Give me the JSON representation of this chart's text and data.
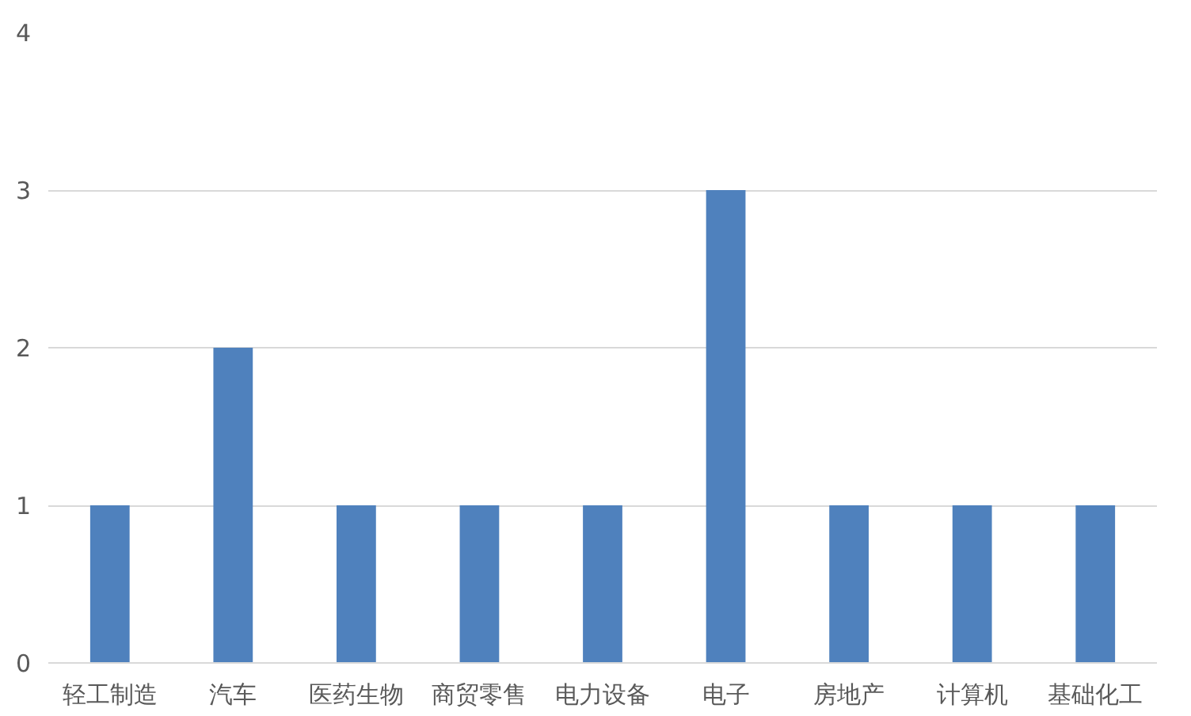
{
  "chart_data": {
    "type": "bar",
    "categories": [
      "轻工制造",
      "汽车",
      "医药生物",
      "商贸零售",
      "电力设备",
      "电子",
      "房地产",
      "计算机",
      "基础化工"
    ],
    "values": [
      1,
      2,
      1,
      1,
      1,
      3,
      1,
      1,
      1
    ],
    "color": "#4f81bd",
    "ylim": [
      0,
      4
    ],
    "yticks": [
      0,
      1,
      2,
      3,
      4
    ],
    "grid": "y"
  }
}
